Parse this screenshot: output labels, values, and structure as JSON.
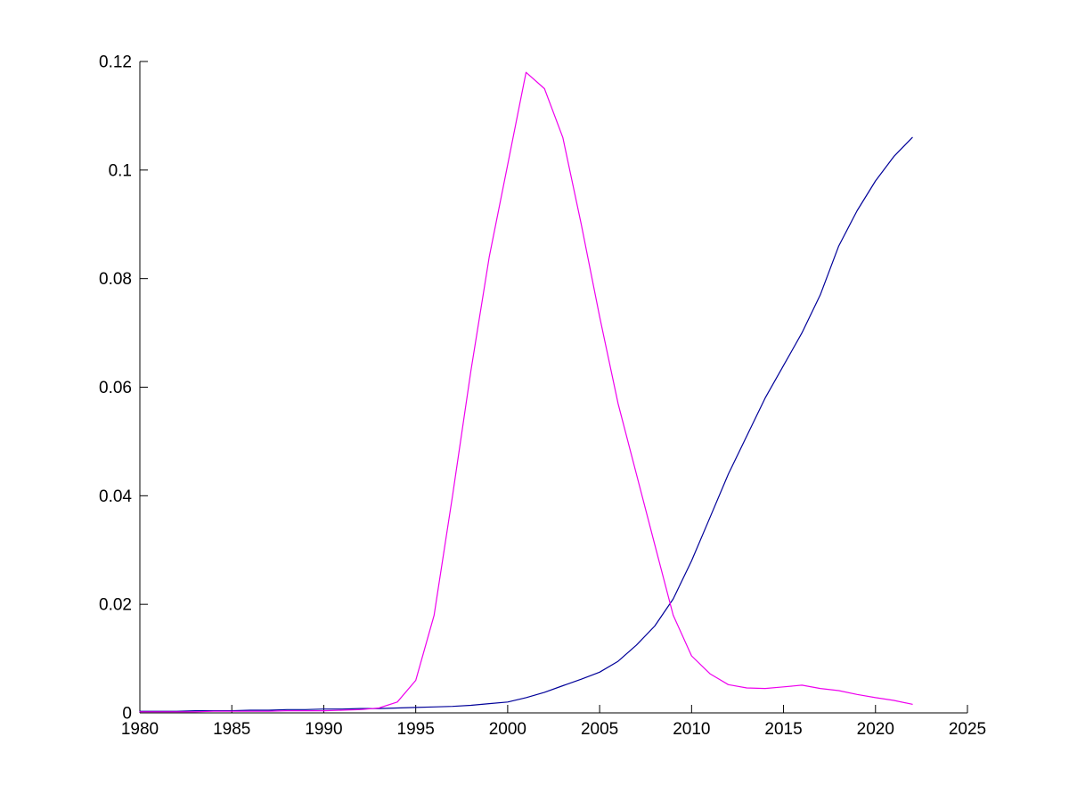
{
  "chart_data": {
    "type": "line",
    "title": "",
    "xlabel": "",
    "ylabel": "",
    "grid": false,
    "legend": null,
    "box": "left-and-bottom-axes-only",
    "background_color": "#ffffff",
    "axis_color": "#000000",
    "xlim": [
      1980,
      2025
    ],
    "ylim": [
      0,
      0.12
    ],
    "x_ticks": [
      1980,
      1985,
      1990,
      1995,
      2000,
      2005,
      2010,
      2015,
      2020,
      2025
    ],
    "x_tick_labels": [
      "1980",
      "1985",
      "1990",
      "1995",
      "2000",
      "2005",
      "2010",
      "2015",
      "2020",
      "2025"
    ],
    "y_ticks": [
      0,
      0.02,
      0.04,
      0.06,
      0.08,
      0.1,
      0.12
    ],
    "y_tick_labels": [
      "0",
      "0.02",
      "0.04",
      "0.06",
      "0.08",
      "0.1",
      "0.12"
    ],
    "x": [
      1980,
      1981,
      1982,
      1983,
      1984,
      1985,
      1986,
      1987,
      1988,
      1989,
      1990,
      1991,
      1992,
      1993,
      1994,
      1995,
      1996,
      1997,
      1998,
      1999,
      2000,
      2001,
      2002,
      2003,
      2004,
      2005,
      2006,
      2007,
      2008,
      2009,
      2010,
      2011,
      2012,
      2013,
      2014,
      2015,
      2016,
      2017,
      2018,
      2019,
      2020,
      2021,
      2022
    ],
    "series": [
      {
        "name": "dark-blue-series",
        "color": "#000099",
        "values": [
          0.0003,
          0.0003,
          0.0003,
          0.0004,
          0.0004,
          0.0004,
          0.0005,
          0.0005,
          0.0006,
          0.0006,
          0.0007,
          0.0007,
          0.0008,
          0.0008,
          0.0009,
          0.001,
          0.0011,
          0.0012,
          0.0014,
          0.0017,
          0.002,
          0.0028,
          0.0038,
          0.005,
          0.0062,
          0.0075,
          0.0095,
          0.0125,
          0.016,
          0.021,
          0.028,
          0.036,
          0.044,
          0.051,
          0.058,
          0.064,
          0.07,
          0.077,
          0.086,
          0.0925,
          0.098,
          0.1025,
          0.106
        ]
      },
      {
        "name": "magenta-series",
        "color": "#EE00EE",
        "values": [
          0.0002,
          0.0002,
          0.0002,
          0.0002,
          0.0003,
          0.0003,
          0.0003,
          0.0003,
          0.0004,
          0.0004,
          0.0004,
          0.0005,
          0.0006,
          0.0009,
          0.002,
          0.006,
          0.018,
          0.04,
          0.063,
          0.084,
          0.101,
          0.118,
          0.115,
          0.106,
          0.09,
          0.073,
          0.057,
          0.044,
          0.031,
          0.018,
          0.0105,
          0.0072,
          0.0052,
          0.0046,
          0.0045,
          0.0048,
          0.0051,
          0.0045,
          0.0041,
          0.0034,
          0.0028,
          0.0023,
          0.0016
        ]
      }
    ],
    "annotations": []
  }
}
